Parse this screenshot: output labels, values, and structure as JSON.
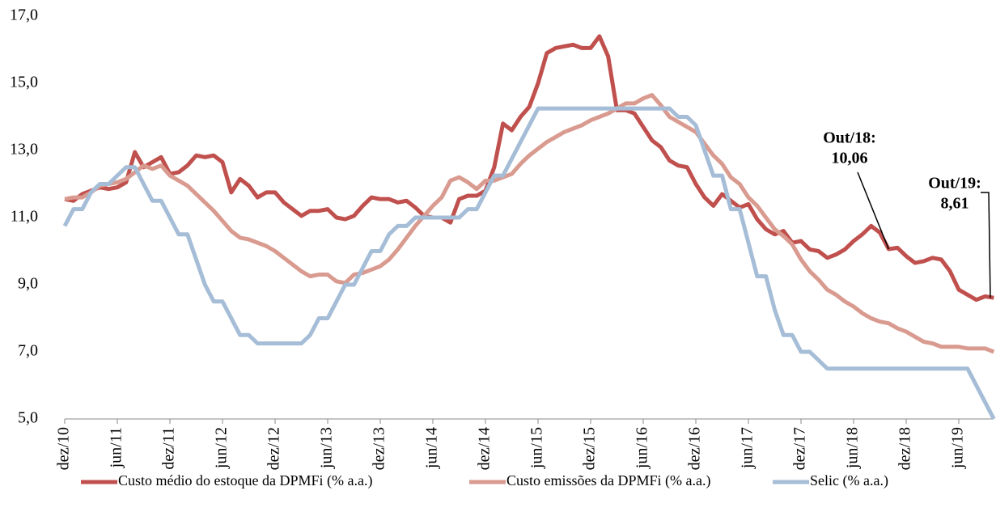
{
  "chart_data": {
    "type": "line",
    "categories": [
      "dez/10",
      null,
      null,
      null,
      null,
      null,
      "jun/11",
      null,
      null,
      null,
      null,
      null,
      "dez/11",
      null,
      null,
      null,
      null,
      null,
      "jun/12",
      null,
      null,
      null,
      null,
      null,
      "dez/12",
      null,
      null,
      null,
      null,
      null,
      "jun/13",
      null,
      null,
      null,
      null,
      null,
      "dez/13",
      null,
      null,
      null,
      null,
      null,
      "jun/14",
      null,
      null,
      null,
      null,
      null,
      "dez/14",
      null,
      null,
      null,
      null,
      null,
      "jun/15",
      null,
      null,
      null,
      null,
      null,
      "dez/15",
      null,
      null,
      null,
      null,
      null,
      "jun/16",
      null,
      null,
      null,
      null,
      null,
      "dez/16",
      null,
      null,
      null,
      null,
      null,
      "jun/17",
      null,
      null,
      null,
      null,
      null,
      "dez/17",
      null,
      null,
      null,
      null,
      null,
      "jun/18",
      null,
      null,
      null,
      null,
      null,
      "dez/18",
      null,
      null,
      null,
      null,
      null,
      "jun/19",
      null,
      null,
      null,
      null
    ],
    "series": [
      {
        "name": "Custo médio do estoque da DPMFi (% a.a.)",
        "color": "#c0504d",
        "values": [
          11.55,
          11.5,
          11.7,
          11.8,
          11.9,
          11.85,
          11.9,
          12.05,
          12.95,
          12.5,
          12.65,
          12.8,
          12.3,
          12.35,
          12.55,
          12.85,
          12.8,
          12.85,
          12.65,
          11.75,
          12.15,
          11.95,
          11.6,
          11.75,
          11.75,
          11.45,
          11.25,
          11.05,
          11.2,
          11.2,
          11.25,
          11.0,
          10.95,
          11.05,
          11.35,
          11.6,
          11.55,
          11.55,
          11.45,
          11.5,
          11.3,
          11.05,
          11.0,
          11.0,
          10.85,
          11.55,
          11.65,
          11.65,
          11.8,
          12.5,
          13.8,
          13.6,
          14.0,
          14.3,
          15.0,
          15.9,
          16.05,
          16.1,
          16.15,
          16.05,
          16.05,
          16.4,
          15.8,
          14.2,
          14.2,
          14.1,
          13.7,
          13.3,
          13.1,
          12.7,
          12.55,
          12.5,
          12.0,
          11.6,
          11.35,
          11.7,
          11.5,
          11.3,
          11.4,
          10.95,
          10.65,
          10.5,
          10.6,
          10.25,
          10.3,
          10.05,
          10.0,
          9.8,
          9.9,
          10.05,
          10.3,
          10.5,
          10.75,
          10.55,
          10.06,
          10.1,
          9.85,
          9.65,
          9.7,
          9.8,
          9.75,
          9.4,
          8.85,
          8.7,
          8.55,
          8.65,
          8.61
        ]
      },
      {
        "name": "Custo emissões da DPMFi (% a.a.)",
        "color": "#d99a8f",
        "values": [
          11.55,
          11.6,
          11.6,
          11.75,
          11.95,
          12.0,
          12.05,
          12.15,
          12.35,
          12.55,
          12.45,
          12.55,
          12.25,
          12.1,
          11.95,
          11.7,
          11.45,
          11.2,
          10.9,
          10.6,
          10.4,
          10.35,
          10.25,
          10.15,
          10.0,
          9.8,
          9.6,
          9.4,
          9.25,
          9.3,
          9.3,
          9.1,
          9.05,
          9.3,
          9.35,
          9.45,
          9.55,
          9.75,
          10.05,
          10.4,
          10.75,
          11.05,
          11.35,
          11.6,
          12.1,
          12.2,
          12.05,
          11.85,
          12.1,
          12.1,
          12.2,
          12.3,
          12.6,
          12.85,
          13.05,
          13.25,
          13.4,
          13.55,
          13.65,
          13.75,
          13.9,
          14.0,
          14.1,
          14.25,
          14.4,
          14.4,
          14.55,
          14.65,
          14.35,
          14.0,
          13.85,
          13.7,
          13.55,
          13.2,
          12.85,
          12.6,
          12.2,
          12.0,
          11.6,
          11.35,
          11.0,
          10.65,
          10.45,
          10.2,
          9.75,
          9.4,
          9.15,
          8.85,
          8.7,
          8.5,
          8.35,
          8.15,
          8.0,
          7.9,
          7.85,
          7.7,
          7.6,
          7.45,
          7.3,
          7.25,
          7.15,
          7.15,
          7.15,
          7.1,
          7.1,
          7.1,
          7.0
        ]
      },
      {
        "name": "Selic (% a.a.)",
        "color": "#a5bdd6",
        "values": [
          10.75,
          11.25,
          11.25,
          11.75,
          12.0,
          12.0,
          12.25,
          12.5,
          12.5,
          12.0,
          11.5,
          11.5,
          11.0,
          10.5,
          10.5,
          9.75,
          9.0,
          8.5,
          8.5,
          8.0,
          7.5,
          7.5,
          7.25,
          7.25,
          7.25,
          7.25,
          7.25,
          7.25,
          7.5,
          8.0,
          8.0,
          8.5,
          9.0,
          9.0,
          9.5,
          10.0,
          10.0,
          10.5,
          10.75,
          10.75,
          11.0,
          11.0,
          11.0,
          11.0,
          11.0,
          11.0,
          11.25,
          11.25,
          11.75,
          12.25,
          12.25,
          12.75,
          13.25,
          13.75,
          14.25,
          14.25,
          14.25,
          14.25,
          14.25,
          14.25,
          14.25,
          14.25,
          14.25,
          14.25,
          14.25,
          14.25,
          14.25,
          14.25,
          14.25,
          14.25,
          14.0,
          14.0,
          13.75,
          13.0,
          12.25,
          12.25,
          11.25,
          11.25,
          10.25,
          9.25,
          9.25,
          8.25,
          7.5,
          7.5,
          7.0,
          7.0,
          6.75,
          6.5,
          6.5,
          6.5,
          6.5,
          6.5,
          6.5,
          6.5,
          6.5,
          6.5,
          6.5,
          6.5,
          6.5,
          6.5,
          6.5,
          6.5,
          6.5,
          6.5,
          6.0,
          5.5,
          5.0
        ]
      }
    ],
    "ylim": [
      5,
      17
    ],
    "yticks": [
      {
        "value": 5,
        "label": "5,0"
      },
      {
        "value": 7,
        "label": "7,0"
      },
      {
        "value": 9,
        "label": "9,0"
      },
      {
        "value": 11,
        "label": "11,0"
      },
      {
        "value": 13,
        "label": "13,0"
      },
      {
        "value": 15,
        "label": "15,0"
      },
      {
        "value": 17,
        "label": "17,0"
      }
    ],
    "grid": false,
    "legend": "bottom",
    "annotations": [
      {
        "lines": [
          "Out/18:",
          "10,06"
        ]
      },
      {
        "lines": [
          "Out/19:",
          "8,61"
        ]
      }
    ]
  }
}
